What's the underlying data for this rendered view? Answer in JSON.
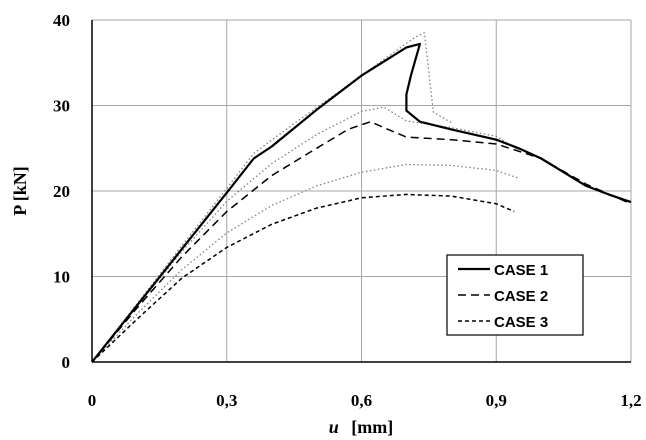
{
  "chart_data": {
    "type": "line",
    "title": "",
    "xlabel_var": "u",
    "xlabel_unit": "[mm]",
    "ylabel": "P [kN]",
    "xlim": [
      0,
      1.2
    ],
    "ylim": [
      0,
      40
    ],
    "xticks": [
      0,
      0.3,
      0.6,
      0.9,
      1.2
    ],
    "xtick_labels": [
      "0",
      "0,3",
      "0,6",
      "0,9",
      "1,2"
    ],
    "yticks": [
      0,
      10,
      20,
      30,
      40
    ],
    "ytick_labels": [
      "0",
      "10",
      "20",
      "30",
      "40"
    ],
    "grid": true,
    "legend_position": "bottom-right",
    "series": [
      {
        "name": "CASE 1",
        "style": "solid",
        "color": "#000000",
        "points": [
          [
            0,
            0
          ],
          [
            0.1,
            6.6
          ],
          [
            0.2,
            13.2
          ],
          [
            0.3,
            19.8
          ],
          [
            0.36,
            23.8
          ],
          [
            0.4,
            25.2
          ],
          [
            0.5,
            29.5
          ],
          [
            0.6,
            33.5
          ],
          [
            0.7,
            36.8
          ],
          [
            0.73,
            37.2
          ],
          [
            0.71,
            33.5
          ],
          [
            0.7,
            31.3
          ],
          [
            0.7,
            29.4
          ],
          [
            0.73,
            28.1
          ],
          [
            0.8,
            27.2
          ],
          [
            0.9,
            26.0
          ],
          [
            0.95,
            25.0
          ],
          [
            1.0,
            23.8
          ],
          [
            1.05,
            22.2
          ],
          [
            1.1,
            20.6
          ],
          [
            1.15,
            19.6
          ],
          [
            1.2,
            18.7
          ]
        ]
      },
      {
        "name": "CASE 2",
        "style": "dashed",
        "color": "#000000",
        "points": [
          [
            0,
            0
          ],
          [
            0.1,
            6.3
          ],
          [
            0.2,
            12.3
          ],
          [
            0.3,
            17.6
          ],
          [
            0.4,
            21.8
          ],
          [
            0.5,
            25.0
          ],
          [
            0.57,
            27.2
          ],
          [
            0.62,
            28.1
          ],
          [
            0.65,
            27.4
          ],
          [
            0.7,
            26.3
          ],
          [
            0.8,
            26.0
          ],
          [
            0.9,
            25.5
          ],
          [
            1.0,
            23.8
          ],
          [
            1.1,
            20.8
          ],
          [
            1.2,
            18.5
          ]
        ]
      },
      {
        "name": "CASE 3",
        "style": "short-dashed",
        "color": "#000000",
        "points": [
          [
            0,
            0
          ],
          [
            0.1,
            5.0
          ],
          [
            0.2,
            9.8
          ],
          [
            0.3,
            13.4
          ],
          [
            0.4,
            16.1
          ],
          [
            0.5,
            18.0
          ],
          [
            0.6,
            19.2
          ],
          [
            0.7,
            19.6
          ],
          [
            0.8,
            19.4
          ],
          [
            0.9,
            18.5
          ],
          [
            0.94,
            17.6
          ]
        ]
      },
      {
        "name": "",
        "style": "dotted",
        "color": "#808080",
        "points": [
          [
            0,
            0
          ],
          [
            0.1,
            6.8
          ],
          [
            0.2,
            13.6
          ],
          [
            0.3,
            20.3
          ],
          [
            0.36,
            24.4
          ],
          [
            0.45,
            27.9
          ],
          [
            0.55,
            31.6
          ],
          [
            0.65,
            35.4
          ],
          [
            0.72,
            38.0
          ],
          [
            0.74,
            38.5
          ],
          [
            0.76,
            29.2
          ],
          [
            0.8,
            28.0
          ]
        ]
      },
      {
        "name": "",
        "style": "dotted",
        "color": "#808080",
        "points": [
          [
            0,
            0
          ],
          [
            0.1,
            6.5
          ],
          [
            0.2,
            12.9
          ],
          [
            0.3,
            18.8
          ],
          [
            0.4,
            23.2
          ],
          [
            0.5,
            26.6
          ],
          [
            0.6,
            29.3
          ],
          [
            0.65,
            29.8
          ],
          [
            0.7,
            28.2
          ],
          [
            0.8,
            27.4
          ],
          [
            0.9,
            26.4
          ],
          [
            0.95,
            24.8
          ]
        ]
      },
      {
        "name": "",
        "style": "dotted",
        "color": "#808080",
        "points": [
          [
            0,
            0
          ],
          [
            0.1,
            5.6
          ],
          [
            0.2,
            10.8
          ],
          [
            0.3,
            15.1
          ],
          [
            0.4,
            18.3
          ],
          [
            0.5,
            20.6
          ],
          [
            0.6,
            22.2
          ],
          [
            0.7,
            23.1
          ],
          [
            0.8,
            23.0
          ],
          [
            0.9,
            22.4
          ],
          [
            0.95,
            21.5
          ]
        ]
      }
    ]
  }
}
